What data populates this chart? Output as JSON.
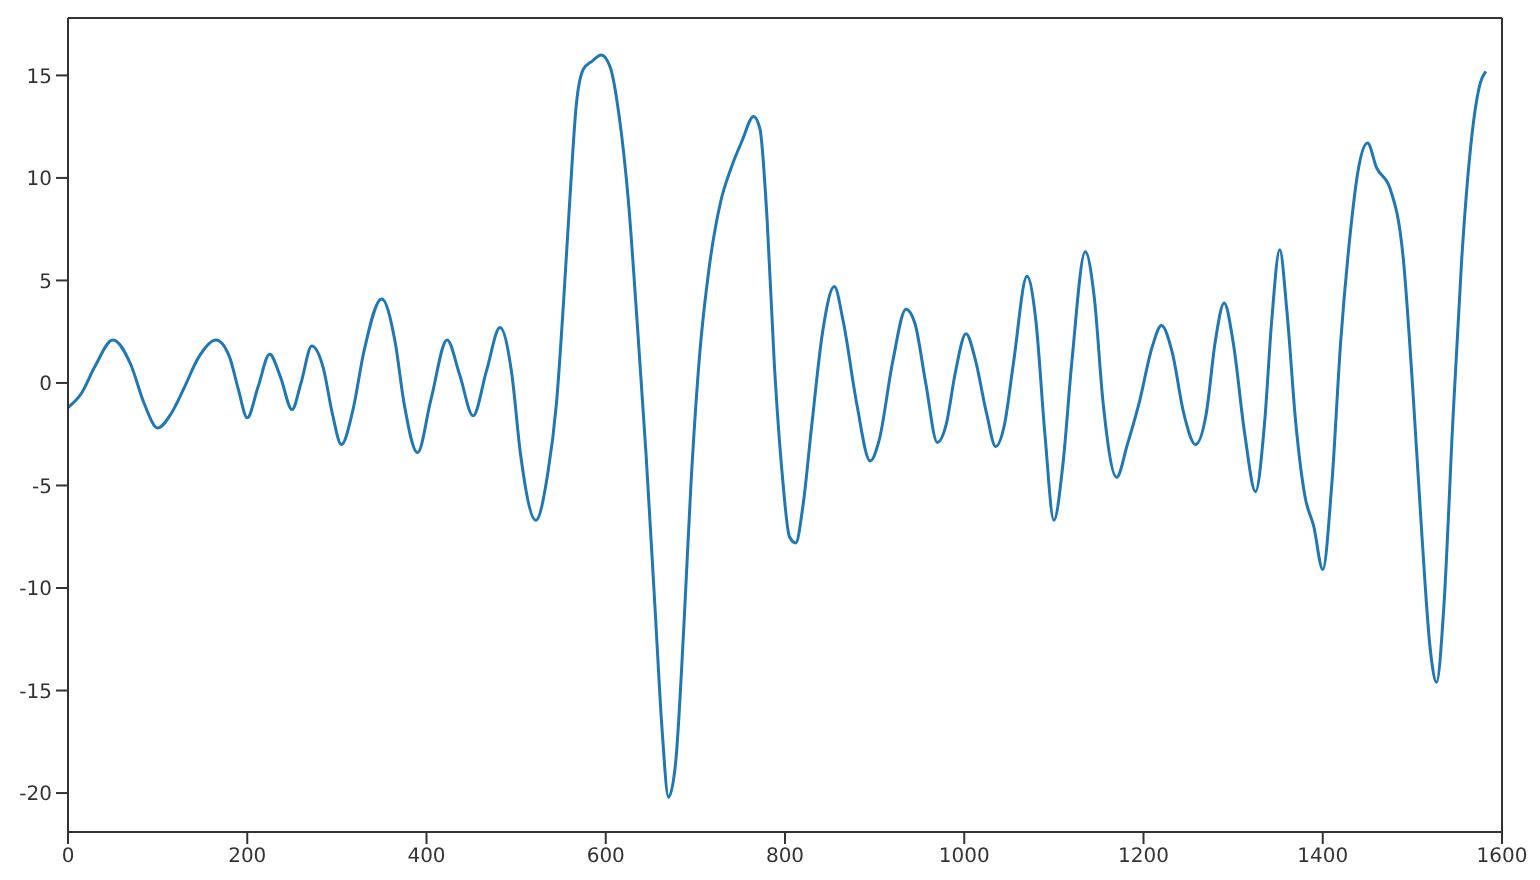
{
  "chart_data": {
    "type": "line",
    "xlim": [
      0,
      1600
    ],
    "xticks": [
      0,
      200,
      400,
      600,
      800,
      1000,
      1200,
      1400,
      1600
    ],
    "ylim": [
      -21.9,
      17.8
    ],
    "yticks": [
      -20,
      -15,
      -10,
      -5,
      0,
      5,
      10,
      15
    ],
    "marker": "none",
    "line_style": "solid",
    "series": [
      {
        "color": "#1f77b4",
        "x": [
          0,
          15,
          30,
          50,
          70,
          85,
          100,
          115,
          130,
          145,
          165,
          180,
          190,
          200,
          212,
          225,
          237,
          250,
          260,
          272,
          285,
          295,
          305,
          318,
          330,
          350,
          365,
          375,
          390,
          405,
          423,
          437,
          452,
          467,
          482,
          495,
          505,
          522,
          535,
          545,
          553,
          560,
          567,
          575,
          585,
          595,
          605,
          615,
          625,
          635,
          645,
          655,
          663,
          670,
          678,
          687,
          695,
          705,
          715,
          728,
          740,
          752,
          765,
          772,
          780,
          788,
          797,
          805,
          812,
          820,
          830,
          842,
          855,
          865,
          880,
          895,
          905,
          920,
          935,
          945,
          957,
          970,
          980,
          990,
          1002,
          1012,
          1025,
          1035,
          1045,
          1055,
          1070,
          1080,
          1090,
          1100,
          1110,
          1120,
          1135,
          1145,
          1155,
          1170,
          1182,
          1195,
          1210,
          1220,
          1232,
          1245,
          1258,
          1270,
          1280,
          1290,
          1300,
          1313,
          1325,
          1335,
          1343,
          1352,
          1360,
          1370,
          1380,
          1390,
          1400,
          1410,
          1420,
          1430,
          1440,
          1450,
          1460,
          1475,
          1490,
          1500,
          1510,
          1520,
          1527,
          1535,
          1545,
          1555,
          1565,
          1575,
          1582
        ],
        "values": [
          -1.2,
          -0.5,
          0.8,
          2.1,
          0.9,
          -1,
          -2.2,
          -1.5,
          -0.2,
          1.2,
          2.1,
          1.3,
          -0.3,
          -1.7,
          -0.2,
          1.4,
          0.3,
          -1.3,
          0,
          1.8,
          0.7,
          -1.5,
          -3.0,
          -1.3,
          1.5,
          4.1,
          2,
          -1,
          -3.4,
          -0.8,
          2.1,
          0.4,
          -1.6,
          0.6,
          2.7,
          0.5,
          -3.5,
          -6.7,
          -4.5,
          -1,
          4,
          9,
          13.5,
          15.3,
          15.7,
          16,
          15.4,
          13,
          9,
          3,
          -3.5,
          -11,
          -17,
          -20.2,
          -18.5,
          -12,
          -5,
          1.5,
          5.5,
          8.8,
          10.5,
          11.8,
          13,
          12.4,
          8,
          1,
          -4.5,
          -7.5,
          -7.8,
          -6,
          -2,
          2.5,
          4.7,
          3,
          -1,
          -3.8,
          -2.8,
          1,
          3.6,
          2.9,
          0,
          -2.9,
          -2,
          0.5,
          2.4,
          1.2,
          -1.5,
          -3.1,
          -2,
          1,
          5.2,
          3,
          -2.5,
          -6.7,
          -4,
          1,
          6.4,
          4.2,
          -1,
          -4.6,
          -3,
          -1,
          1.8,
          2.8,
          1.5,
          -1.5,
          -3,
          -1.5,
          2,
          3.9,
          2,
          -2.5,
          -5.3,
          -2,
          3,
          6.5,
          3.5,
          -2,
          -5.5,
          -7,
          -9.1,
          -5,
          2,
          7,
          10.5,
          11.7,
          10.5,
          9.5,
          6,
          0,
          -7,
          -13,
          -14.6,
          -11,
          -2,
          6,
          11.5,
          14.5,
          15.2
        ]
      }
    ]
  }
}
